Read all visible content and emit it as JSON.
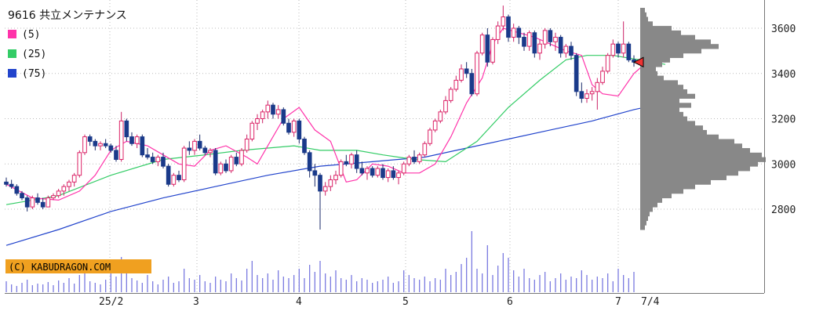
{
  "chart_data": {
    "type": "candlestick",
    "title": "9616 共立メンテナンス",
    "copyright": "(C) KABUDRAGON.COM",
    "y_ticks": [
      2800,
      3000,
      3200,
      3400,
      3600
    ],
    "ylim": [
      2600,
      3700
    ],
    "x_tick_labels": [
      "25/2",
      "3",
      "4",
      "5",
      "6",
      "7",
      "7/4"
    ],
    "legend": [
      {
        "name": "(5)",
        "color": "#ff33aa"
      },
      {
        "name": "(25)",
        "color": "#33cc66"
      },
      {
        "name": "(75)",
        "color": "#2244cc"
      }
    ],
    "ma5_knots": [
      [
        0,
        2910
      ],
      [
        5,
        2850
      ],
      [
        10,
        2840
      ],
      [
        14,
        2880
      ],
      [
        17,
        2950
      ],
      [
        20,
        3060
      ],
      [
        23,
        3100
      ],
      [
        27,
        3080
      ],
      [
        30,
        3040
      ],
      [
        33,
        3000
      ],
      [
        36,
        2990
      ],
      [
        39,
        3060
      ],
      [
        42,
        3080
      ],
      [
        46,
        3030
      ],
      [
        48,
        3000
      ],
      [
        50,
        3080
      ],
      [
        53,
        3200
      ],
      [
        56,
        3250
      ],
      [
        59,
        3150
      ],
      [
        62,
        3100
      ],
      [
        65,
        2920
      ],
      [
        67,
        2930
      ],
      [
        70,
        3000
      ],
      [
        73,
        2990
      ],
      [
        76,
        2960
      ],
      [
        79,
        2960
      ],
      [
        82,
        3000
      ],
      [
        85,
        3120
      ],
      [
        88,
        3270
      ],
      [
        91,
        3380
      ],
      [
        93,
        3530
      ],
      [
        95,
        3600
      ],
      [
        98,
        3580
      ],
      [
        101,
        3560
      ],
      [
        104,
        3530
      ],
      [
        107,
        3500
      ],
      [
        110,
        3480
      ],
      [
        112,
        3350
      ],
      [
        114,
        3310
      ],
      [
        117,
        3300
      ],
      [
        120,
        3400
      ],
      [
        123,
        3460
      ],
      [
        126,
        3450
      ]
    ],
    "ma25_knots": [
      [
        0,
        2820
      ],
      [
        10,
        2860
      ],
      [
        20,
        2950
      ],
      [
        30,
        3020
      ],
      [
        38,
        3040
      ],
      [
        45,
        3060
      ],
      [
        55,
        3080
      ],
      [
        60,
        3060
      ],
      [
        67,
        3060
      ],
      [
        72,
        3040
      ],
      [
        78,
        3020
      ],
      [
        84,
        3010
      ],
      [
        90,
        3100
      ],
      [
        96,
        3250
      ],
      [
        102,
        3370
      ],
      [
        107,
        3460
      ],
      [
        111,
        3480
      ],
      [
        116,
        3480
      ],
      [
        121,
        3460
      ],
      [
        126,
        3440
      ]
    ],
    "ma75_knots": [
      [
        0,
        2640
      ],
      [
        10,
        2710
      ],
      [
        20,
        2790
      ],
      [
        30,
        2850
      ],
      [
        40,
        2900
      ],
      [
        50,
        2950
      ],
      [
        60,
        2990
      ],
      [
        70,
        3010
      ],
      [
        80,
        3030
      ],
      [
        88,
        3070
      ],
      [
        96,
        3110
      ],
      [
        104,
        3150
      ],
      [
        112,
        3190
      ],
      [
        120,
        3240
      ],
      [
        126,
        3270
      ]
    ],
    "candles": [
      {
        "o": 2920,
        "h": 2940,
        "l": 2900,
        "c": 2910
      },
      {
        "o": 2910,
        "h": 2930,
        "l": 2890,
        "c": 2900
      },
      {
        "o": 2900,
        "h": 2910,
        "l": 2860,
        "c": 2870
      },
      {
        "o": 2870,
        "h": 2880,
        "l": 2840,
        "c": 2850
      },
      {
        "o": 2850,
        "h": 2860,
        "l": 2790,
        "c": 2810
      },
      {
        "o": 2810,
        "h": 2860,
        "l": 2800,
        "c": 2850
      },
      {
        "o": 2850,
        "h": 2870,
        "l": 2820,
        "c": 2830
      },
      {
        "o": 2830,
        "h": 2850,
        "l": 2800,
        "c": 2810
      },
      {
        "o": 2810,
        "h": 2860,
        "l": 2810,
        "c": 2850
      },
      {
        "o": 2850,
        "h": 2870,
        "l": 2840,
        "c": 2860
      },
      {
        "o": 2860,
        "h": 2890,
        "l": 2850,
        "c": 2880
      },
      {
        "o": 2880,
        "h": 2910,
        "l": 2860,
        "c": 2900
      },
      {
        "o": 2900,
        "h": 2930,
        "l": 2880,
        "c": 2920
      },
      {
        "o": 2920,
        "h": 2960,
        "l": 2900,
        "c": 2950
      },
      {
        "o": 2950,
        "h": 3060,
        "l": 2940,
        "c": 3050
      },
      {
        "o": 3050,
        "h": 3130,
        "l": 3040,
        "c": 3120
      },
      {
        "o": 3120,
        "h": 3130,
        "l": 3080,
        "c": 3100
      },
      {
        "o": 3100,
        "h": 3110,
        "l": 3060,
        "c": 3080
      },
      {
        "o": 3080,
        "h": 3100,
        "l": 3060,
        "c": 3090
      },
      {
        "o": 3090,
        "h": 3110,
        "l": 3070,
        "c": 3080
      },
      {
        "o": 3080,
        "h": 3090,
        "l": 3050,
        "c": 3060
      },
      {
        "o": 3060,
        "h": 3080,
        "l": 3010,
        "c": 3020
      },
      {
        "o": 3020,
        "h": 3230,
        "l": 3010,
        "c": 3190
      },
      {
        "o": 3190,
        "h": 3200,
        "l": 3100,
        "c": 3120
      },
      {
        "o": 3120,
        "h": 3140,
        "l": 3080,
        "c": 3090
      },
      {
        "o": 3090,
        "h": 3130,
        "l": 3070,
        "c": 3120
      },
      {
        "o": 3120,
        "h": 3130,
        "l": 3030,
        "c": 3040
      },
      {
        "o": 3040,
        "h": 3070,
        "l": 3020,
        "c": 3030
      },
      {
        "o": 3030,
        "h": 3050,
        "l": 3000,
        "c": 3010
      },
      {
        "o": 3010,
        "h": 3040,
        "l": 2990,
        "c": 3030
      },
      {
        "o": 3030,
        "h": 3050,
        "l": 2980,
        "c": 2990
      },
      {
        "o": 2990,
        "h": 3000,
        "l": 2900,
        "c": 2910
      },
      {
        "o": 2910,
        "h": 2960,
        "l": 2900,
        "c": 2950
      },
      {
        "o": 2950,
        "h": 2970,
        "l": 2920,
        "c": 2930
      },
      {
        "o": 2930,
        "h": 3080,
        "l": 2920,
        "c": 3070
      },
      {
        "o": 3070,
        "h": 3100,
        "l": 3040,
        "c": 3060
      },
      {
        "o": 3060,
        "h": 3110,
        "l": 3040,
        "c": 3100
      },
      {
        "o": 3100,
        "h": 3130,
        "l": 3060,
        "c": 3070
      },
      {
        "o": 3070,
        "h": 3080,
        "l": 3040,
        "c": 3050
      },
      {
        "o": 3050,
        "h": 3070,
        "l": 3030,
        "c": 3060
      },
      {
        "o": 3060,
        "h": 3070,
        "l": 2950,
        "c": 2960
      },
      {
        "o": 2960,
        "h": 3010,
        "l": 2950,
        "c": 3000
      },
      {
        "o": 3000,
        "h": 3020,
        "l": 2960,
        "c": 2970
      },
      {
        "o": 2970,
        "h": 3040,
        "l": 2960,
        "c": 3030
      },
      {
        "o": 3030,
        "h": 3050,
        "l": 2990,
        "c": 3000
      },
      {
        "o": 3000,
        "h": 3070,
        "l": 2990,
        "c": 3060
      },
      {
        "o": 3060,
        "h": 3130,
        "l": 3050,
        "c": 3110
      },
      {
        "o": 3110,
        "h": 3190,
        "l": 3100,
        "c": 3180
      },
      {
        "o": 3180,
        "h": 3220,
        "l": 3150,
        "c": 3200
      },
      {
        "o": 3200,
        "h": 3240,
        "l": 3180,
        "c": 3230
      },
      {
        "o": 3230,
        "h": 3280,
        "l": 3200,
        "c": 3260
      },
      {
        "o": 3260,
        "h": 3270,
        "l": 3200,
        "c": 3220
      },
      {
        "o": 3220,
        "h": 3260,
        "l": 3200,
        "c": 3240
      },
      {
        "o": 3240,
        "h": 3250,
        "l": 3170,
        "c": 3180
      },
      {
        "o": 3180,
        "h": 3200,
        "l": 3130,
        "c": 3140
      },
      {
        "o": 3140,
        "h": 3200,
        "l": 3120,
        "c": 3190
      },
      {
        "o": 3190,
        "h": 3200,
        "l": 3090,
        "c": 3110
      },
      {
        "o": 3110,
        "h": 3120,
        "l": 3040,
        "c": 3050
      },
      {
        "o": 3050,
        "h": 3060,
        "l": 2940,
        "c": 2970
      },
      {
        "o": 2970,
        "h": 3000,
        "l": 2900,
        "c": 2950
      },
      {
        "o": 2950,
        "h": 2960,
        "l": 2710,
        "c": 2880
      },
      {
        "o": 2880,
        "h": 2920,
        "l": 2860,
        "c": 2900
      },
      {
        "o": 2900,
        "h": 2950,
        "l": 2880,
        "c": 2930
      },
      {
        "o": 2930,
        "h": 2970,
        "l": 2910,
        "c": 2950
      },
      {
        "o": 2950,
        "h": 3020,
        "l": 2940,
        "c": 3010
      },
      {
        "o": 3010,
        "h": 3040,
        "l": 2990,
        "c": 3000
      },
      {
        "o": 3000,
        "h": 3050,
        "l": 2980,
        "c": 3040
      },
      {
        "o": 3040,
        "h": 3060,
        "l": 2960,
        "c": 2980
      },
      {
        "o": 2980,
        "h": 3010,
        "l": 2950,
        "c": 2960
      },
      {
        "o": 2960,
        "h": 2990,
        "l": 2930,
        "c": 2980
      },
      {
        "o": 2980,
        "h": 2990,
        "l": 2940,
        "c": 2950
      },
      {
        "o": 2950,
        "h": 2990,
        "l": 2940,
        "c": 2980
      },
      {
        "o": 2980,
        "h": 3000,
        "l": 2930,
        "c": 2940
      },
      {
        "o": 2940,
        "h": 2980,
        "l": 2920,
        "c": 2970
      },
      {
        "o": 2970,
        "h": 2990,
        "l": 2930,
        "c": 2940
      },
      {
        "o": 2940,
        "h": 2970,
        "l": 2910,
        "c": 2960
      },
      {
        "o": 2960,
        "h": 3010,
        "l": 2950,
        "c": 3000
      },
      {
        "o": 3000,
        "h": 3040,
        "l": 2990,
        "c": 3030
      },
      {
        "o": 3030,
        "h": 3060,
        "l": 3000,
        "c": 3010
      },
      {
        "o": 3010,
        "h": 3050,
        "l": 3000,
        "c": 3040
      },
      {
        "o": 3040,
        "h": 3100,
        "l": 3030,
        "c": 3090
      },
      {
        "o": 3090,
        "h": 3160,
        "l": 3080,
        "c": 3150
      },
      {
        "o": 3150,
        "h": 3200,
        "l": 3140,
        "c": 3190
      },
      {
        "o": 3190,
        "h": 3240,
        "l": 3180,
        "c": 3230
      },
      {
        "o": 3230,
        "h": 3300,
        "l": 3220,
        "c": 3280
      },
      {
        "o": 3280,
        "h": 3340,
        "l": 3270,
        "c": 3330
      },
      {
        "o": 3330,
        "h": 3390,
        "l": 3320,
        "c": 3370
      },
      {
        "o": 3370,
        "h": 3440,
        "l": 3360,
        "c": 3420
      },
      {
        "o": 3420,
        "h": 3450,
        "l": 3380,
        "c": 3400
      },
      {
        "o": 3400,
        "h": 3420,
        "l": 3300,
        "c": 3310
      },
      {
        "o": 3310,
        "h": 3500,
        "l": 3300,
        "c": 3490
      },
      {
        "o": 3490,
        "h": 3580,
        "l": 3480,
        "c": 3570
      },
      {
        "o": 3570,
        "h": 3600,
        "l": 3430,
        "c": 3450
      },
      {
        "o": 3450,
        "h": 3560,
        "l": 3440,
        "c": 3550
      },
      {
        "o": 3550,
        "h": 3630,
        "l": 3530,
        "c": 3610
      },
      {
        "o": 3610,
        "h": 3700,
        "l": 3590,
        "c": 3650
      },
      {
        "o": 3650,
        "h": 3660,
        "l": 3540,
        "c": 3560
      },
      {
        "o": 3560,
        "h": 3620,
        "l": 3540,
        "c": 3600
      },
      {
        "o": 3600,
        "h": 3610,
        "l": 3530,
        "c": 3560
      },
      {
        "o": 3560,
        "h": 3580,
        "l": 3500,
        "c": 3520
      },
      {
        "o": 3520,
        "h": 3590,
        "l": 3500,
        "c": 3580
      },
      {
        "o": 3580,
        "h": 3590,
        "l": 3470,
        "c": 3490
      },
      {
        "o": 3490,
        "h": 3550,
        "l": 3460,
        "c": 3530
      },
      {
        "o": 3530,
        "h": 3600,
        "l": 3510,
        "c": 3590
      },
      {
        "o": 3590,
        "h": 3600,
        "l": 3520,
        "c": 3540
      },
      {
        "o": 3540,
        "h": 3580,
        "l": 3500,
        "c": 3560
      },
      {
        "o": 3560,
        "h": 3570,
        "l": 3470,
        "c": 3490
      },
      {
        "o": 3490,
        "h": 3530,
        "l": 3470,
        "c": 3520
      },
      {
        "o": 3520,
        "h": 3540,
        "l": 3460,
        "c": 3480
      },
      {
        "o": 3480,
        "h": 3490,
        "l": 3300,
        "c": 3320
      },
      {
        "o": 3320,
        "h": 3360,
        "l": 3270,
        "c": 3290
      },
      {
        "o": 3290,
        "h": 3330,
        "l": 3270,
        "c": 3310
      },
      {
        "o": 3310,
        "h": 3340,
        "l": 3280,
        "c": 3320
      },
      {
        "o": 3320,
        "h": 3380,
        "l": 3240,
        "c": 3360
      },
      {
        "o": 3360,
        "h": 3430,
        "l": 3350,
        "c": 3410
      },
      {
        "o": 3410,
        "h": 3490,
        "l": 3400,
        "c": 3480
      },
      {
        "o": 3480,
        "h": 3550,
        "l": 3470,
        "c": 3530
      },
      {
        "o": 3530,
        "h": 3540,
        "l": 3470,
        "c": 3490
      },
      {
        "o": 3490,
        "h": 3630,
        "l": 3470,
        "c": 3530
      },
      {
        "o": 3530,
        "h": 3540,
        "l": 3450,
        "c": 3460
      },
      {
        "o": 3460,
        "h": 3480,
        "l": 3430,
        "c": 3450
      }
    ],
    "volume": [
      14,
      10,
      8,
      12,
      16,
      9,
      11,
      10,
      13,
      9,
      15,
      12,
      18,
      11,
      22,
      28,
      14,
      12,
      10,
      16,
      25,
      20,
      45,
      30,
      18,
      15,
      12,
      22,
      14,
      10,
      16,
      20,
      12,
      14,
      30,
      18,
      16,
      22,
      14,
      12,
      20,
      16,
      14,
      24,
      18,
      15,
      30,
      40,
      22,
      18,
      24,
      16,
      28,
      20,
      18,
      22,
      30,
      18,
      35,
      26,
      40,
      24,
      20,
      28,
      18,
      16,
      22,
      14,
      18,
      16,
      12,
      14,
      16,
      20,
      12,
      14,
      28,
      22,
      18,
      16,
      20,
      14,
      18,
      16,
      30,
      22,
      26,
      36,
      44,
      78,
      30,
      24,
      60,
      22,
      34,
      50,
      44,
      28,
      20,
      30,
      18,
      16,
      22,
      26,
      14,
      18,
      24,
      16,
      20,
      18,
      28,
      22,
      16,
      20,
      18,
      24,
      14,
      30,
      22,
      18,
      26,
      20,
      16,
      20,
      34,
      28,
      20
    ],
    "volume_profile": [
      {
        "p": 3680,
        "w": 6
      },
      {
        "p": 3660,
        "w": 8
      },
      {
        "p": 3640,
        "w": 10
      },
      {
        "p": 3620,
        "w": 16
      },
      {
        "p": 3600,
        "w": 40
      },
      {
        "p": 3580,
        "w": 52
      },
      {
        "p": 3560,
        "w": 70
      },
      {
        "p": 3540,
        "w": 90
      },
      {
        "p": 3520,
        "w": 100
      },
      {
        "p": 3500,
        "w": 78
      },
      {
        "p": 3480,
        "w": 55
      },
      {
        "p": 3460,
        "w": 38
      },
      {
        "p": 3440,
        "w": 28
      },
      {
        "p": 3420,
        "w": 20
      },
      {
        "p": 3400,
        "w": 22
      },
      {
        "p": 3380,
        "w": 30
      },
      {
        "p": 3360,
        "w": 48
      },
      {
        "p": 3340,
        "w": 55
      },
      {
        "p": 3320,
        "w": 60
      },
      {
        "p": 3300,
        "w": 70
      },
      {
        "p": 3280,
        "w": 50
      },
      {
        "p": 3260,
        "w": 65
      },
      {
        "p": 3240,
        "w": 50
      },
      {
        "p": 3220,
        "w": 55
      },
      {
        "p": 3200,
        "w": 60
      },
      {
        "p": 3180,
        "w": 70
      },
      {
        "p": 3160,
        "w": 80
      },
      {
        "p": 3140,
        "w": 85
      },
      {
        "p": 3120,
        "w": 100
      },
      {
        "p": 3100,
        "w": 120
      },
      {
        "p": 3080,
        "w": 130
      },
      {
        "p": 3060,
        "w": 140
      },
      {
        "p": 3040,
        "w": 155
      },
      {
        "p": 3020,
        "w": 160
      },
      {
        "p": 3000,
        "w": 150
      },
      {
        "p": 2980,
        "w": 140
      },
      {
        "p": 2960,
        "w": 125
      },
      {
        "p": 2940,
        "w": 110
      },
      {
        "p": 2920,
        "w": 90
      },
      {
        "p": 2900,
        "w": 70
      },
      {
        "p": 2880,
        "w": 55
      },
      {
        "p": 2860,
        "w": 40
      },
      {
        "p": 2840,
        "w": 28
      },
      {
        "p": 2820,
        "w": 22
      },
      {
        "p": 2800,
        "w": 16
      },
      {
        "p": 2780,
        "w": 12
      },
      {
        "p": 2760,
        "w": 10
      },
      {
        "p": 2740,
        "w": 8
      },
      {
        "p": 2720,
        "w": 6
      }
    ],
    "current_price": 3450,
    "colors": {
      "up": "#ff3388",
      "down": "#1a3a8a",
      "ma5": "#ff33aa",
      "ma25": "#33cc66",
      "ma75": "#2244cc",
      "volume": "#7a7ae0",
      "profile": "#888888",
      "grid": "#bbbbbb",
      "copyright_bg": "#f0a020",
      "marker": "#ee3333"
    }
  }
}
